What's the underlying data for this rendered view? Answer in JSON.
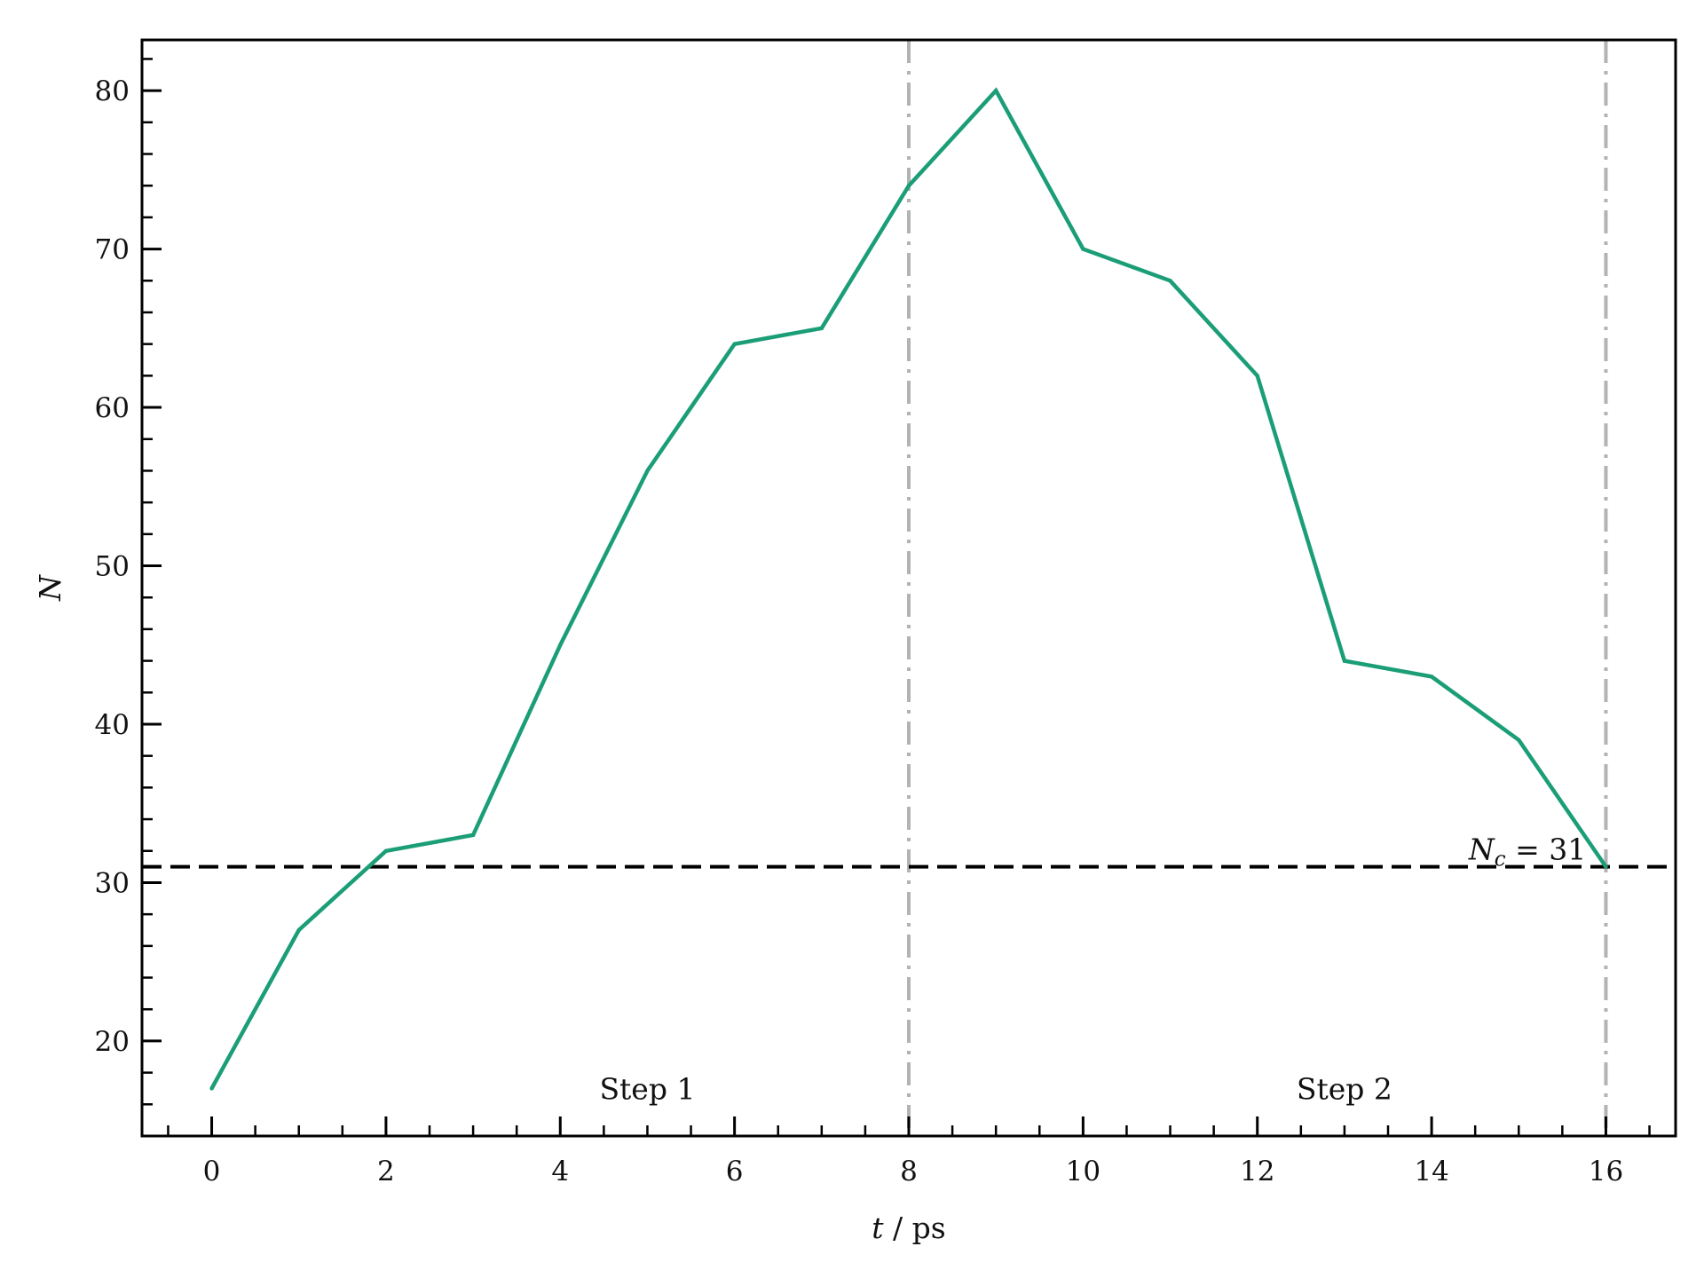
{
  "chart_data": {
    "type": "line",
    "xlabel": "t / ps",
    "ylabel": "N",
    "xlim": [
      -0.8,
      16.8
    ],
    "ylim": [
      14,
      83.2
    ],
    "x_ticks": [
      0,
      2,
      4,
      6,
      8,
      10,
      12,
      14,
      16
    ],
    "y_ticks": [
      20,
      30,
      40,
      50,
      60,
      70,
      80
    ],
    "x_tick_labels": [
      "0",
      "2",
      "4",
      "6",
      "8",
      "10",
      "12",
      "14",
      "16"
    ],
    "y_tick_labels": [
      "20",
      "30",
      "40",
      "50",
      "60",
      "70",
      "80"
    ],
    "grid": false,
    "series": [
      {
        "color": "#1b9e77",
        "x": [
          0,
          1,
          2,
          3,
          4,
          5,
          6,
          7,
          8,
          9,
          10,
          11,
          12,
          13,
          14,
          15,
          16
        ],
        "y": [
          17,
          27,
          32,
          33,
          45,
          56,
          64,
          65,
          74,
          80,
          70,
          68,
          62,
          44,
          43,
          39,
          31
        ]
      }
    ],
    "hlines": [
      {
        "y": 31,
        "style": "dashed",
        "color": "#000000",
        "label": "N_c = 31"
      }
    ],
    "vlines": [
      {
        "x": 8,
        "style": "dashdot",
        "color": "#b3b3b3"
      },
      {
        "x": 16,
        "style": "dashdot",
        "color": "#b3b3b3"
      }
    ],
    "annotations": [
      {
        "text": "Step 1",
        "x": 5,
        "y": 17
      },
      {
        "text": "Step 2",
        "x": 13,
        "y": 17
      }
    ]
  }
}
